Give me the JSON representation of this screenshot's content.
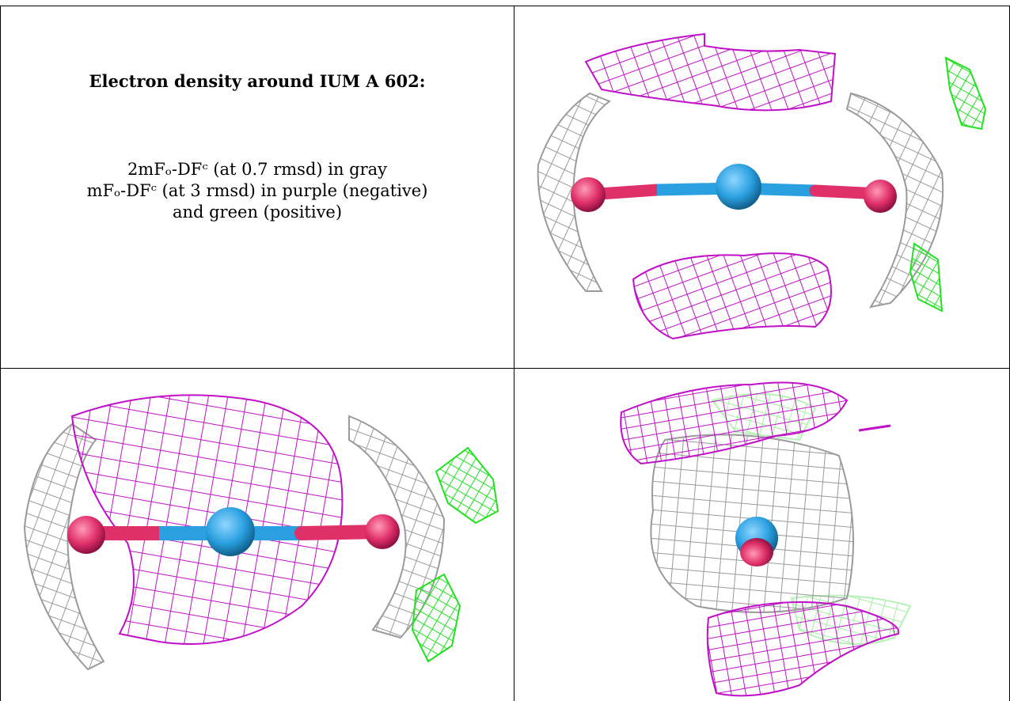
{
  "caption": {
    "title": "Electron density around IUM A 602:",
    "line1": "2mFₒ-DFᶜ (at 0.7 rmsd) in gray",
    "line2": "mFₒ-DFᶜ (at 3 rmsd) in purple (negative)",
    "line3": "and green (positive)"
  },
  "colors": {
    "gray_mesh": "#9a9a9a",
    "purple_mesh": "#c010c8",
    "green_mesh": "#22e022",
    "bond_pink": "#e0306a",
    "atom_blue": "#2aa0e0",
    "atom_pink": "#e0306a"
  },
  "panels": [
    "density-view-top-right",
    "density-view-bottom-left",
    "density-view-bottom-right"
  ]
}
